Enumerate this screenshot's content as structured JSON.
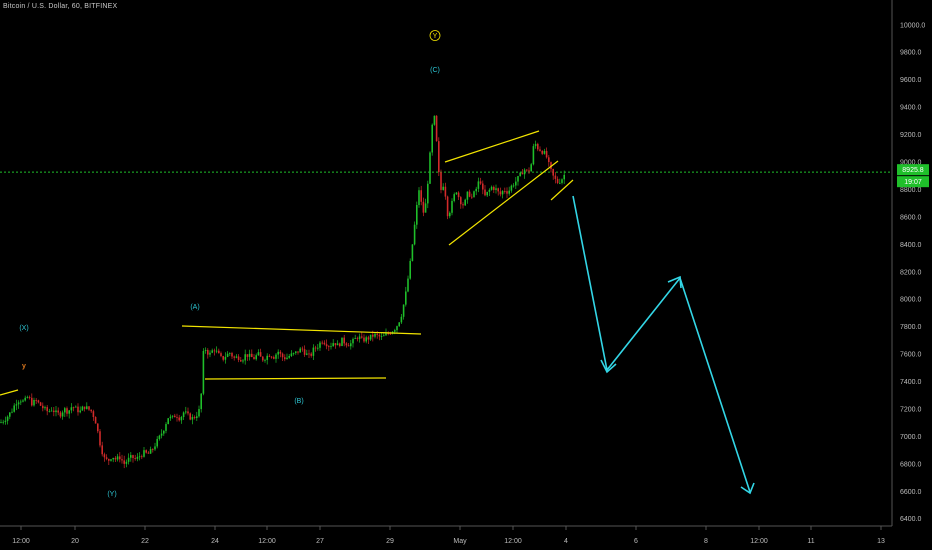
{
  "header": {
    "symbol_title": "Bitcoin / U.S. Dollar, 60, BITFINEX"
  },
  "colors": {
    "background": "#000000",
    "axis_text": "#bdbdbd",
    "up_candle": "#1fbf2a",
    "down_candle": "#d22a2a",
    "trendline": "#f2e400",
    "wave_label": "#2ec8d6",
    "projection_arrow": "#33d6e6",
    "price_line": "#1fbf2a",
    "wave_label_orange": "#e07a1e"
  },
  "price_line": {
    "value_label": "8925.8",
    "countdown_label": "19:07"
  },
  "wave_labels": [
    {
      "text": "(X)"
    },
    {
      "text": "y"
    },
    {
      "text": "(Y)"
    },
    {
      "text": "(A)"
    },
    {
      "text": "(B)"
    },
    {
      "text": "(C)"
    },
    {
      "text": "Y"
    }
  ],
  "chart_data": {
    "type": "candlestick",
    "title": "Bitcoin / U.S. Dollar, 60, BITFINEX",
    "ylim": [
      6300,
      10200
    ],
    "y_ticks": [
      10000,
      9800,
      9600,
      9400,
      9200,
      9000,
      8800,
      8600,
      8400,
      8200,
      8000,
      7800,
      7600,
      7400,
      7200,
      7000,
      6800,
      6600,
      6400
    ],
    "y_tick_labels": [
      "10000.0",
      "9800.0",
      "9600.0",
      "9400.0",
      "9200.0",
      "9000.0",
      "8800.0",
      "8600.0",
      "8400.0",
      "8200.0",
      "8000.0",
      "7800.0",
      "7600.0",
      "7400.0",
      "7200.0",
      "7000.0",
      "6800.0",
      "6600.0",
      "6400.0"
    ],
    "x_tick_labels": [
      "12:00",
      "20",
      "22",
      "24",
      "12:00",
      "27",
      "29",
      "May",
      "12:00",
      "4",
      "6",
      "8",
      "12:00",
      "11",
      "13"
    ],
    "last_price": 8925.8,
    "price_path": [
      [
        0,
        7100
      ],
      [
        4,
        7120
      ],
      [
        8,
        7150
      ],
      [
        12,
        7190
      ],
      [
        16,
        7250
      ],
      [
        20,
        7270
      ],
      [
        24,
        7250
      ],
      [
        28,
        7290
      ],
      [
        32,
        7240
      ],
      [
        36,
        7260
      ],
      [
        40,
        7230
      ],
      [
        44,
        7200
      ],
      [
        48,
        7180
      ],
      [
        52,
        7200
      ],
      [
        56,
        7170
      ],
      [
        60,
        7160
      ],
      [
        64,
        7200
      ],
      [
        68,
        7180
      ],
      [
        72,
        7220
      ],
      [
        76,
        7200
      ],
      [
        80,
        7180
      ],
      [
        84,
        7220
      ],
      [
        88,
        7200
      ],
      [
        92,
        7180
      ],
      [
        96,
        7100
      ],
      [
        100,
        6950
      ],
      [
        104,
        6840
      ],
      [
        108,
        6820
      ],
      [
        112,
        6860
      ],
      [
        116,
        6830
      ],
      [
        120,
        6850
      ],
      [
        124,
        6800
      ],
      [
        128,
        6830
      ],
      [
        132,
        6850
      ],
      [
        136,
        6830
      ],
      [
        140,
        6860
      ],
      [
        144,
        6880
      ],
      [
        148,
        6870
      ],
      [
        152,
        6900
      ],
      [
        156,
        6950
      ],
      [
        160,
        7000
      ],
      [
        164,
        7060
      ],
      [
        168,
        7140
      ],
      [
        172,
        7130
      ],
      [
        176,
        7160
      ],
      [
        180,
        7130
      ],
      [
        184,
        7180
      ],
      [
        188,
        7150
      ],
      [
        192,
        7130
      ],
      [
        196,
        7150
      ],
      [
        200,
        7200
      ],
      [
        202,
        7380
      ],
      [
        204,
        7700
      ],
      [
        206,
        7620
      ],
      [
        210,
        7600
      ],
      [
        214,
        7640
      ],
      [
        218,
        7600
      ],
      [
        222,
        7560
      ],
      [
        226,
        7590
      ],
      [
        230,
        7610
      ],
      [
        234,
        7570
      ],
      [
        238,
        7580
      ],
      [
        242,
        7560
      ],
      [
        246,
        7600
      ],
      [
        250,
        7580
      ],
      [
        254,
        7570
      ],
      [
        258,
        7600
      ],
      [
        262,
        7560
      ],
      [
        266,
        7580
      ],
      [
        270,
        7600
      ],
      [
        274,
        7580
      ],
      [
        278,
        7620
      ],
      [
        282,
        7580
      ],
      [
        286,
        7570
      ],
      [
        290,
        7590
      ],
      [
        294,
        7600
      ],
      [
        298,
        7620
      ],
      [
        302,
        7640
      ],
      [
        306,
        7600
      ],
      [
        310,
        7580
      ],
      [
        314,
        7640
      ],
      [
        318,
        7660
      ],
      [
        322,
        7700
      ],
      [
        326,
        7680
      ],
      [
        330,
        7660
      ],
      [
        334,
        7690
      ],
      [
        338,
        7660
      ],
      [
        342,
        7700
      ],
      [
        346,
        7680
      ],
      [
        350,
        7670
      ],
      [
        354,
        7700
      ],
      [
        358,
        7730
      ],
      [
        362,
        7700
      ],
      [
        366,
        7710
      ],
      [
        370,
        7720
      ],
      [
        374,
        7740
      ],
      [
        378,
        7730
      ],
      [
        382,
        7720
      ],
      [
        386,
        7740
      ],
      [
        390,
        7760
      ],
      [
        394,
        7780
      ],
      [
        398,
        7820
      ],
      [
        402,
        7900
      ],
      [
        406,
        8050
      ],
      [
        410,
        8250
      ],
      [
        414,
        8500
      ],
      [
        418,
        8750
      ],
      [
        420,
        8850
      ],
      [
        422,
        8600
      ],
      [
        426,
        8700
      ],
      [
        430,
        9050
      ],
      [
        432,
        9250
      ],
      [
        434,
        9350
      ],
      [
        436,
        9200
      ],
      [
        438,
        9000
      ],
      [
        440,
        8780
      ],
      [
        444,
        8850
      ],
      [
        448,
        8600
      ],
      [
        452,
        8700
      ],
      [
        456,
        8800
      ],
      [
        460,
        8720
      ],
      [
        464,
        8680
      ],
      [
        468,
        8780
      ],
      [
        472,
        8740
      ],
      [
        476,
        8800
      ],
      [
        480,
        8880
      ],
      [
        484,
        8740
      ],
      [
        488,
        8780
      ],
      [
        492,
        8820
      ],
      [
        496,
        8800
      ],
      [
        500,
        8760
      ],
      [
        504,
        8800
      ],
      [
        508,
        8780
      ],
      [
        512,
        8830
      ],
      [
        516,
        8860
      ],
      [
        520,
        8900
      ],
      [
        524,
        8950
      ],
      [
        528,
        8920
      ],
      [
        532,
        9000
      ],
      [
        534,
        9150
      ],
      [
        538,
        9100
      ],
      [
        542,
        9080
      ],
      [
        546,
        9050
      ],
      [
        550,
        8950
      ],
      [
        554,
        8880
      ],
      [
        558,
        8850
      ],
      [
        562,
        8880
      ],
      [
        566,
        8926
      ]
    ]
  }
}
